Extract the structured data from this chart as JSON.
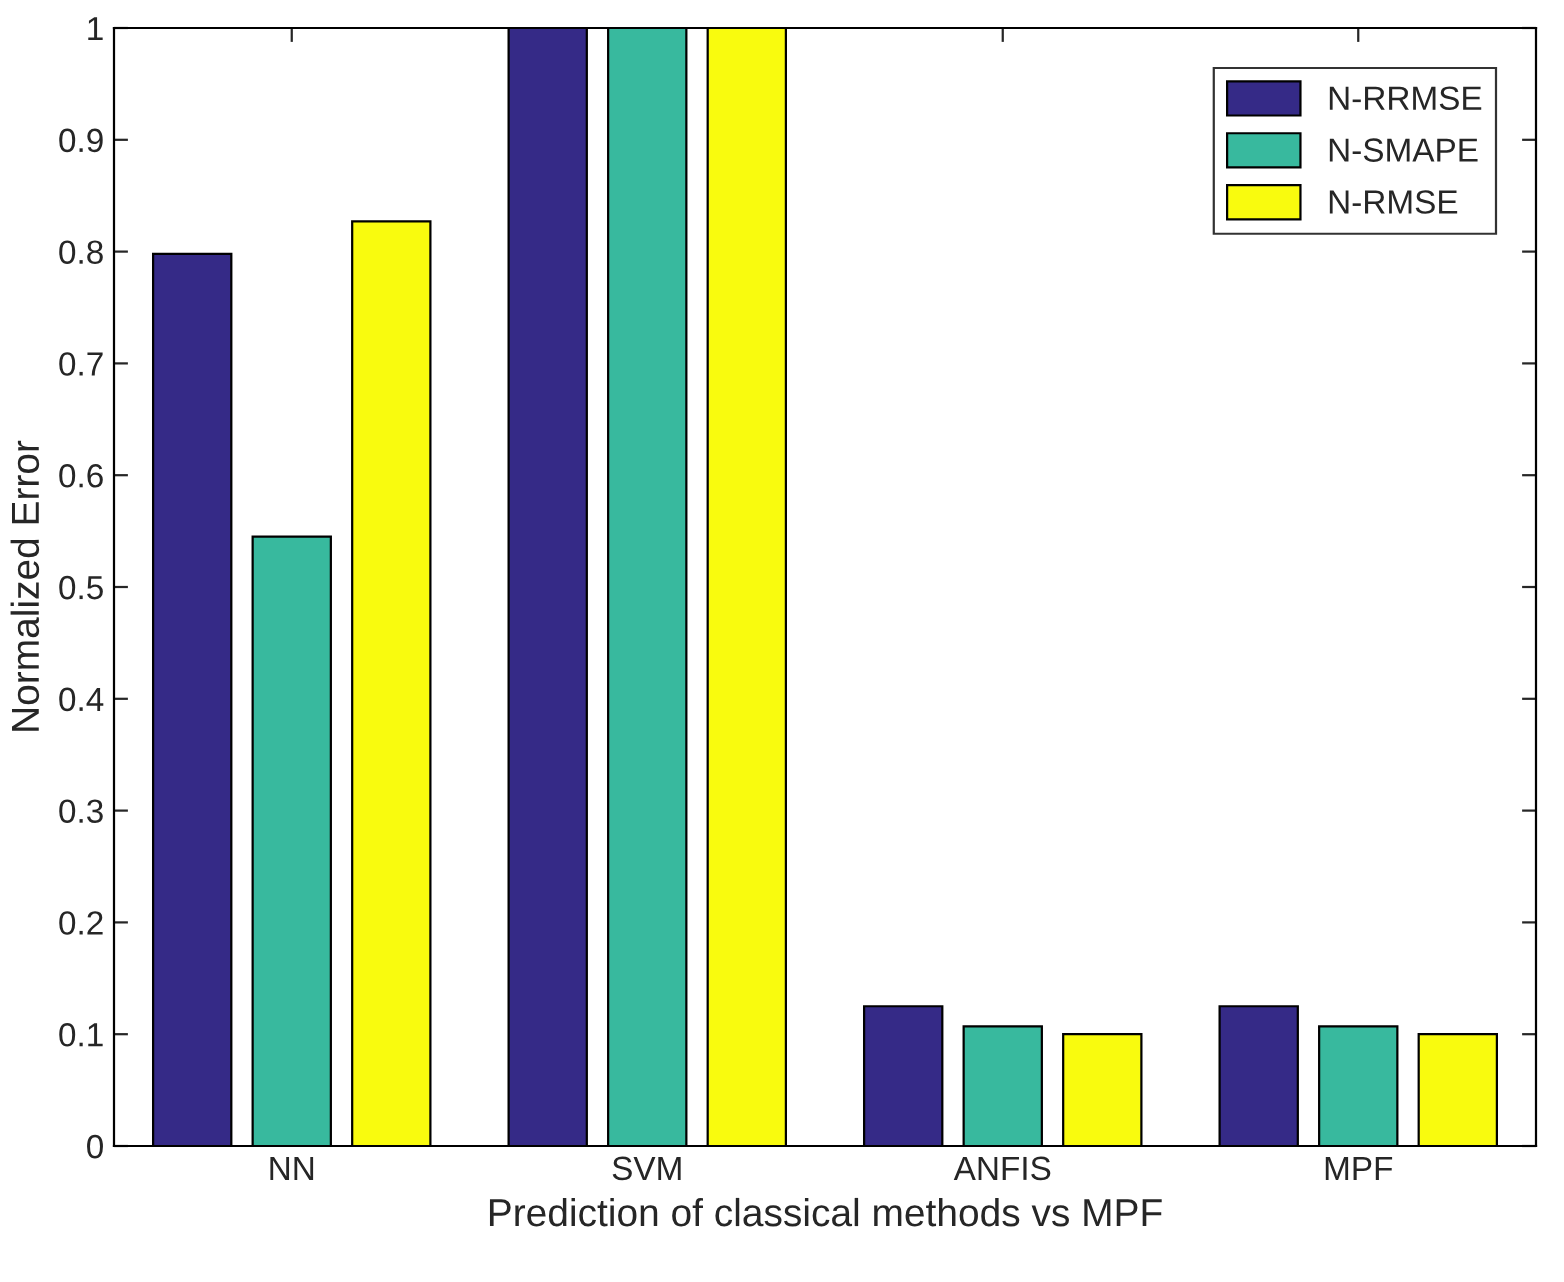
{
  "chart_data": {
    "type": "bar",
    "xlabel": "Prediction of classical methods vs MPF",
    "ylabel": "Normalized Error",
    "categories": [
      "NN",
      "SVM",
      "ANFIS",
      "MPF"
    ],
    "series": [
      {
        "name": "N-RRMSE",
        "color": "#352a87",
        "values": [
          0.798,
          1.0,
          0.125,
          0.125
        ]
      },
      {
        "name": "N-SMAPE",
        "color": "#38b99e",
        "values": [
          0.545,
          1.0,
          0.107,
          0.107
        ]
      },
      {
        "name": "N-RMSE",
        "color": "#f9fb0e",
        "values": [
          0.827,
          1.0,
          0.1,
          0.1
        ]
      }
    ],
    "ylim": [
      0,
      1
    ],
    "yticks": [
      0,
      0.1,
      0.2,
      0.3,
      0.4,
      0.5,
      0.6,
      0.7,
      0.8,
      0.9,
      1
    ],
    "grid": false,
    "legend": "top right"
  }
}
